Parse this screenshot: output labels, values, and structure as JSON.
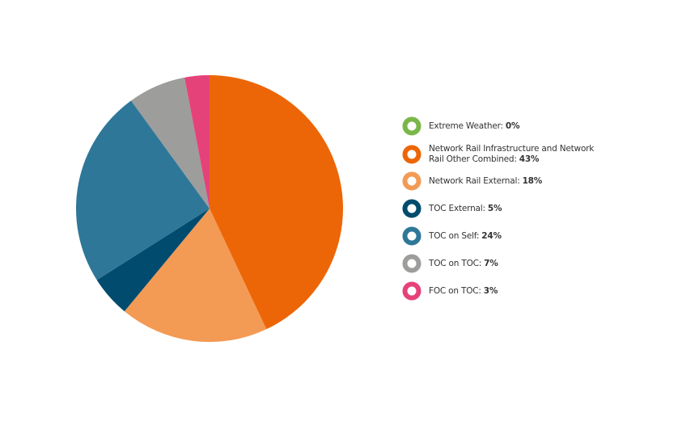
{
  "chart_data": {
    "type": "pie",
    "categories": [
      "Extreme Weather:",
      "Network Rail Infrastructure and Network Rail Other Combined:",
      "Network Rail External:",
      "TOC External:",
      "TOC on Self:",
      "TOC on TOC:",
      "FOC on TOC:"
    ],
    "values": [
      0,
      43,
      18,
      5,
      24,
      7,
      3
    ],
    "value_labels": [
      "0%",
      "43%",
      "18%",
      "5%",
      "24%",
      "7%",
      "3%"
    ],
    "colors": [
      "#7ab648",
      "#ec6608",
      "#f39a55",
      "#004b6e",
      "#2e7799",
      "#9d9d9c",
      "#e6427a"
    ],
    "legend": "right"
  }
}
